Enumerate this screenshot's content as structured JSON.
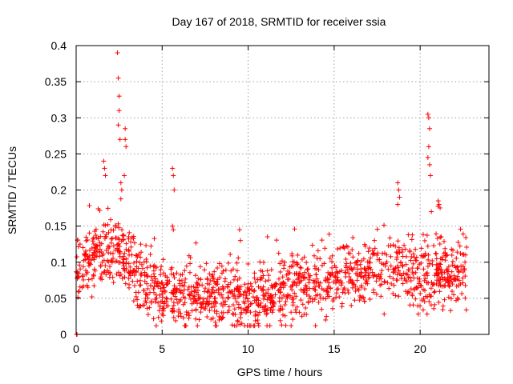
{
  "chart_data": {
    "type": "scatter",
    "title": "Day 167 of 2018, SRMTID for receiver ssia",
    "xlabel": "GPS time / hours",
    "ylabel": "SRMTID / TECUs",
    "xlim": [
      0,
      24
    ],
    "ylim": [
      0,
      0.4
    ],
    "x_ticks": [
      0,
      5,
      10,
      15,
      20
    ],
    "x_tick_labels": [
      "0",
      "5",
      "10",
      "15",
      "20"
    ],
    "y_ticks": [
      0,
      0.05,
      0.1,
      0.15,
      0.2,
      0.25,
      0.3,
      0.35,
      0.4
    ],
    "y_tick_labels": [
      "0",
      "0.05",
      "0.1",
      "0.15",
      "0.2",
      "0.25",
      "0.3",
      "0.35",
      "0.4"
    ],
    "grid": true,
    "marker": "+",
    "color": "#ff0000",
    "trend": [
      [
        0.0,
        0.09
      ],
      [
        1.0,
        0.11
      ],
      [
        2.0,
        0.12
      ],
      [
        3.0,
        0.1
      ],
      [
        4.0,
        0.07
      ],
      [
        5.0,
        0.06
      ],
      [
        6.0,
        0.06
      ],
      [
        7.0,
        0.05
      ],
      [
        8.0,
        0.055
      ],
      [
        9.0,
        0.055
      ],
      [
        10.0,
        0.045
      ],
      [
        11.0,
        0.05
      ],
      [
        12.0,
        0.06
      ],
      [
        13.0,
        0.07
      ],
      [
        14.0,
        0.075
      ],
      [
        15.0,
        0.075
      ],
      [
        16.0,
        0.08
      ],
      [
        17.0,
        0.085
      ],
      [
        18.0,
        0.085
      ],
      [
        19.0,
        0.085
      ],
      [
        20.0,
        0.08
      ],
      [
        21.0,
        0.08
      ],
      [
        22.0,
        0.085
      ],
      [
        22.7,
        0.09
      ]
    ],
    "spread": 0.022,
    "points": [
      [
        0.02,
        0.0
      ],
      [
        0.05,
        0.0
      ],
      [
        1.6,
        0.24
      ],
      [
        1.65,
        0.23
      ],
      [
        1.7,
        0.22
      ],
      [
        2.4,
        0.39
      ],
      [
        2.45,
        0.355
      ],
      [
        2.5,
        0.33
      ],
      [
        2.5,
        0.31
      ],
      [
        2.45,
        0.29
      ],
      [
        2.55,
        0.27
      ],
      [
        2.6,
        0.21
      ],
      [
        2.65,
        0.2
      ],
      [
        2.85,
        0.285
      ],
      [
        2.85,
        0.27
      ],
      [
        2.9,
        0.26
      ],
      [
        2.8,
        0.22
      ],
      [
        5.6,
        0.23
      ],
      [
        5.65,
        0.22
      ],
      [
        5.7,
        0.2
      ],
      [
        5.6,
        0.15
      ],
      [
        5.65,
        0.145
      ],
      [
        9.5,
        0.145
      ],
      [
        9.55,
        0.13
      ],
      [
        18.7,
        0.21
      ],
      [
        18.75,
        0.2
      ],
      [
        18.8,
        0.19
      ],
      [
        18.7,
        0.18
      ],
      [
        20.45,
        0.305
      ],
      [
        20.5,
        0.3
      ],
      [
        20.55,
        0.285
      ],
      [
        20.5,
        0.26
      ],
      [
        20.45,
        0.245
      ],
      [
        20.55,
        0.235
      ],
      [
        20.6,
        0.22
      ],
      [
        20.65,
        0.17
      ],
      [
        21.05,
        0.185
      ],
      [
        21.1,
        0.18
      ],
      [
        14.5,
        0.02
      ],
      [
        14.55,
        0.025
      ]
    ],
    "point_count": 1500
  }
}
